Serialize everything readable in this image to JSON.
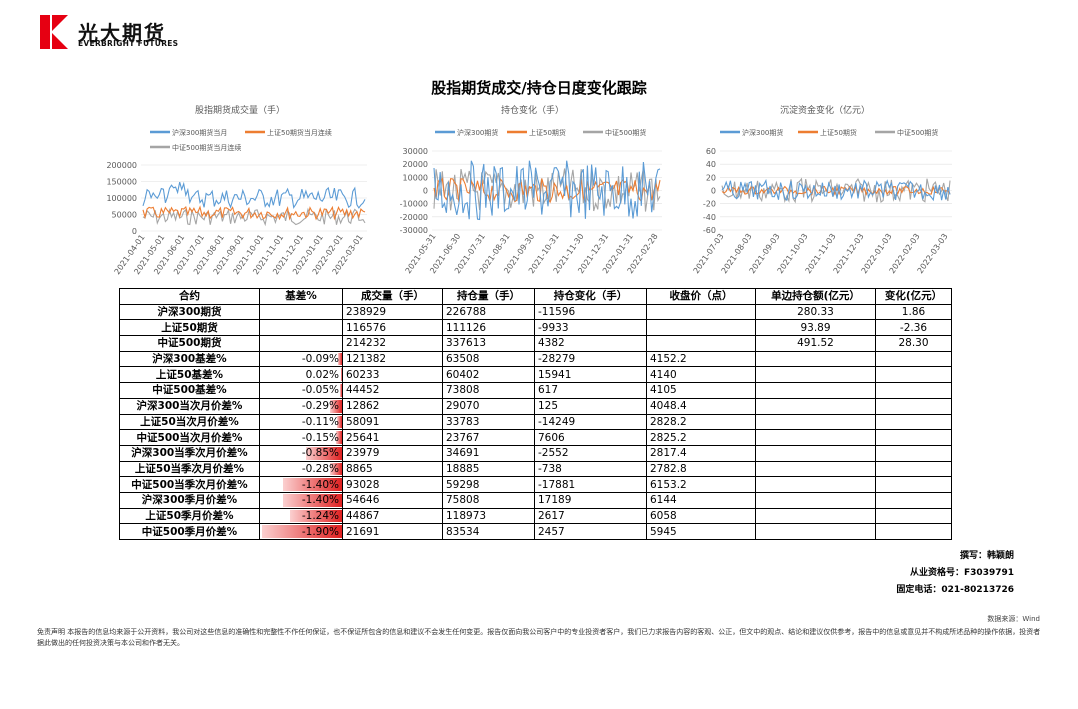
{
  "logo": {
    "cn": "光大期货",
    "en": "EVERBRIGHT FUTURES"
  },
  "title": "股指期货成交/持仓日度变化跟踪",
  "charts": [
    {
      "title": "股指期货成交量（手）",
      "legend": [
        "沪深300期货当月",
        "上证50期货当月连续",
        "中证500期货当月连续"
      ],
      "yticks": [
        "200000",
        "150000",
        "100000",
        "50000",
        "0"
      ],
      "xticks": [
        "2021-04-01",
        "2021-05-01",
        "2021-06-01",
        "2021-07-01",
        "2021-08-01",
        "2021-09-01",
        "2021-10-01",
        "2021-11-01",
        "2021-12-01",
        "2022-01-01",
        "2022-02-01",
        "2022-03-01"
      ]
    },
    {
      "title": "持仓变化（手）",
      "legend": [
        "沪深300期货",
        "上证50期货",
        "中证500期货"
      ],
      "yticks": [
        "30000",
        "20000",
        "10000",
        "0",
        "-10000",
        "-20000",
        "-30000"
      ],
      "xticks": [
        "2021-05-31",
        "2021-06-30",
        "2021-07-31",
        "2021-08-31",
        "2021-09-30",
        "2021-10-31",
        "2021-11-30",
        "2021-12-31",
        "2022-01-31",
        "2022-02-28"
      ]
    },
    {
      "title": "沉淀资金变化（亿元）",
      "legend": [
        "沪深300期货",
        "上证50期货",
        "中证500期货"
      ],
      "yticks": [
        "60",
        "40",
        "20",
        "0",
        "-20",
        "-40",
        "-60"
      ],
      "xticks": [
        "2021-07-03",
        "2021-08-03",
        "2021-09-03",
        "2021-10-03",
        "2021-11-03",
        "2021-12-03",
        "2022-01-03",
        "2022-02-03",
        "2022-03-03"
      ]
    }
  ],
  "colors": {
    "s1": "#5b9bd5",
    "s2": "#ed7d31",
    "s3": "#a5a5a5"
  },
  "table": {
    "headers": [
      "合约",
      "基差%",
      "成交量（手）",
      "持仓量（手）",
      "持仓变化（手）",
      "收盘价（点）",
      "单边持仓额(亿元）",
      "变化(亿元）"
    ],
    "rows": [
      {
        "name": "沪深300期货",
        "basis": "",
        "vol": "238929",
        "oi": "226788",
        "chg": "-11596",
        "close": "",
        "amt": "280.33",
        "amtchg": "1.86"
      },
      {
        "name": "上证50期货",
        "basis": "",
        "vol": "116576",
        "oi": "111126",
        "chg": "-9933",
        "close": "",
        "amt": "93.89",
        "amtchg": "-2.36"
      },
      {
        "name": "中证500期货",
        "basis": "",
        "vol": "214232",
        "oi": "337613",
        "chg": "4382",
        "close": "",
        "amt": "491.52",
        "amtchg": "28.30"
      },
      {
        "name": "沪深300基差%",
        "basis": "-0.09%",
        "vol": "121382",
        "oi": "63508",
        "chg": "-28279",
        "close": "4152.2",
        "amt": "",
        "amtchg": ""
      },
      {
        "name": "上证50基差%",
        "basis": "0.02%",
        "vol": "60233",
        "oi": "60402",
        "chg": "15941",
        "close": "4140",
        "amt": "",
        "amtchg": ""
      },
      {
        "name": "中证500基差%",
        "basis": "-0.05%",
        "vol": "44452",
        "oi": "73808",
        "chg": "617",
        "close": "4105",
        "amt": "",
        "amtchg": ""
      },
      {
        "name": "沪深300当次月价差%",
        "basis": "-0.29%",
        "vol": "12862",
        "oi": "29070",
        "chg": "125",
        "close": "4048.4",
        "amt": "",
        "amtchg": ""
      },
      {
        "name": "上证50当次月价差%",
        "basis": "-0.11%",
        "vol": "58091",
        "oi": "33783",
        "chg": "-14249",
        "close": "2828.2",
        "amt": "",
        "amtchg": ""
      },
      {
        "name": "中证500当次月价差%",
        "basis": "-0.15%",
        "vol": "25641",
        "oi": "23767",
        "chg": "7606",
        "close": "2825.2",
        "amt": "",
        "amtchg": ""
      },
      {
        "name": "沪深300当季次月价差%",
        "basis": "-0.85%",
        "vol": "23979",
        "oi": "34691",
        "chg": "-2552",
        "close": "2817.4",
        "amt": "",
        "amtchg": ""
      },
      {
        "name": "上证50当季次月价差%",
        "basis": "-0.28%",
        "vol": "8865",
        "oi": "18885",
        "chg": "-738",
        "close": "2782.8",
        "amt": "",
        "amtchg": ""
      },
      {
        "name": "中证500当季次月价差%",
        "basis": "-1.40%",
        "vol": "93028",
        "oi": "59298",
        "chg": "-17881",
        "close": "6153.2",
        "amt": "",
        "amtchg": ""
      },
      {
        "name": "沪深300季月价差%",
        "basis": "-1.40%",
        "vol": "54646",
        "oi": "75808",
        "chg": "17189",
        "close": "6144",
        "amt": "",
        "amtchg": ""
      },
      {
        "name": "上证50季月价差%",
        "basis": "-1.24%",
        "vol": "44867",
        "oi": "118973",
        "chg": "2617",
        "close": "6058",
        "amt": "",
        "amtchg": ""
      },
      {
        "name": "中证500季月价差%",
        "basis": "-1.90%",
        "vol": "21691",
        "oi": "83534",
        "chg": "2457",
        "close": "5945",
        "amt": "",
        "amtchg": ""
      }
    ],
    "basis_abs_pct": [
      0,
      0,
      0,
      0.09,
      0.02,
      0.05,
      0.29,
      0.11,
      0.15,
      0.85,
      0.28,
      1.4,
      1.4,
      1.24,
      1.9
    ],
    "basis_max_pct": 1.9
  },
  "author": {
    "writer": "撰写：韩颖朗",
    "license": "从业资格号：F3039791",
    "phone": "固定电话：021-80213726"
  },
  "source": "数据来源：Wind",
  "disclaimer": "免责声明    本报告的信息均来源于公开资料，我公司对这些信息的准确性和完整性不作任何保证，也不保证所包含的信息和建议不会发生任何变更。报告仅面向我公司客户中的专业投资者客户，我们已力求报告内容的客观、公正，但文中的观点、结论和建议仅供参考，报告中的信息或意见并不构成所述品种的操作依据，投资者据此做出的任何投资决策与本公司和作者无关。"
}
